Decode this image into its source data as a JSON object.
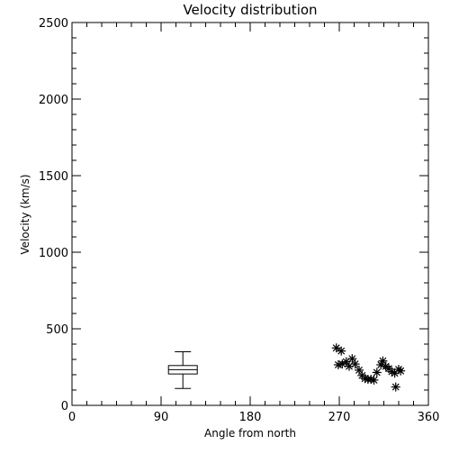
{
  "chart_data": {
    "type": "scatter",
    "title": "Velocity distribution",
    "xlabel": "Angle from north",
    "ylabel": "Velocity (km/s)",
    "xlim": [
      0,
      360
    ],
    "ylim": [
      0,
      2500
    ],
    "xticks": [
      0,
      90,
      180,
      270,
      360
    ],
    "yticks": [
      0,
      500,
      1000,
      1500,
      2000,
      2500
    ],
    "grid": false,
    "boxplot": {
      "x": 112,
      "min": 110,
      "q1": 205,
      "median": 233,
      "q3": 260,
      "max": 350
    },
    "points": [
      {
        "x": 267,
        "y": 375
      },
      {
        "x": 272,
        "y": 355
      },
      {
        "x": 269,
        "y": 265
      },
      {
        "x": 273,
        "y": 270
      },
      {
        "x": 277,
        "y": 285
      },
      {
        "x": 280,
        "y": 255
      },
      {
        "x": 283,
        "y": 305
      },
      {
        "x": 286,
        "y": 270
      },
      {
        "x": 290,
        "y": 230
      },
      {
        "x": 293,
        "y": 195
      },
      {
        "x": 296,
        "y": 175
      },
      {
        "x": 299,
        "y": 170
      },
      {
        "x": 302,
        "y": 170
      },
      {
        "x": 305,
        "y": 165
      },
      {
        "x": 308,
        "y": 215
      },
      {
        "x": 312,
        "y": 265
      },
      {
        "x": 314,
        "y": 290
      },
      {
        "x": 317,
        "y": 255
      },
      {
        "x": 320,
        "y": 240
      },
      {
        "x": 323,
        "y": 220
      },
      {
        "x": 326,
        "y": 210
      },
      {
        "x": 327,
        "y": 120
      },
      {
        "x": 330,
        "y": 235
      },
      {
        "x": 332,
        "y": 225
      }
    ]
  }
}
